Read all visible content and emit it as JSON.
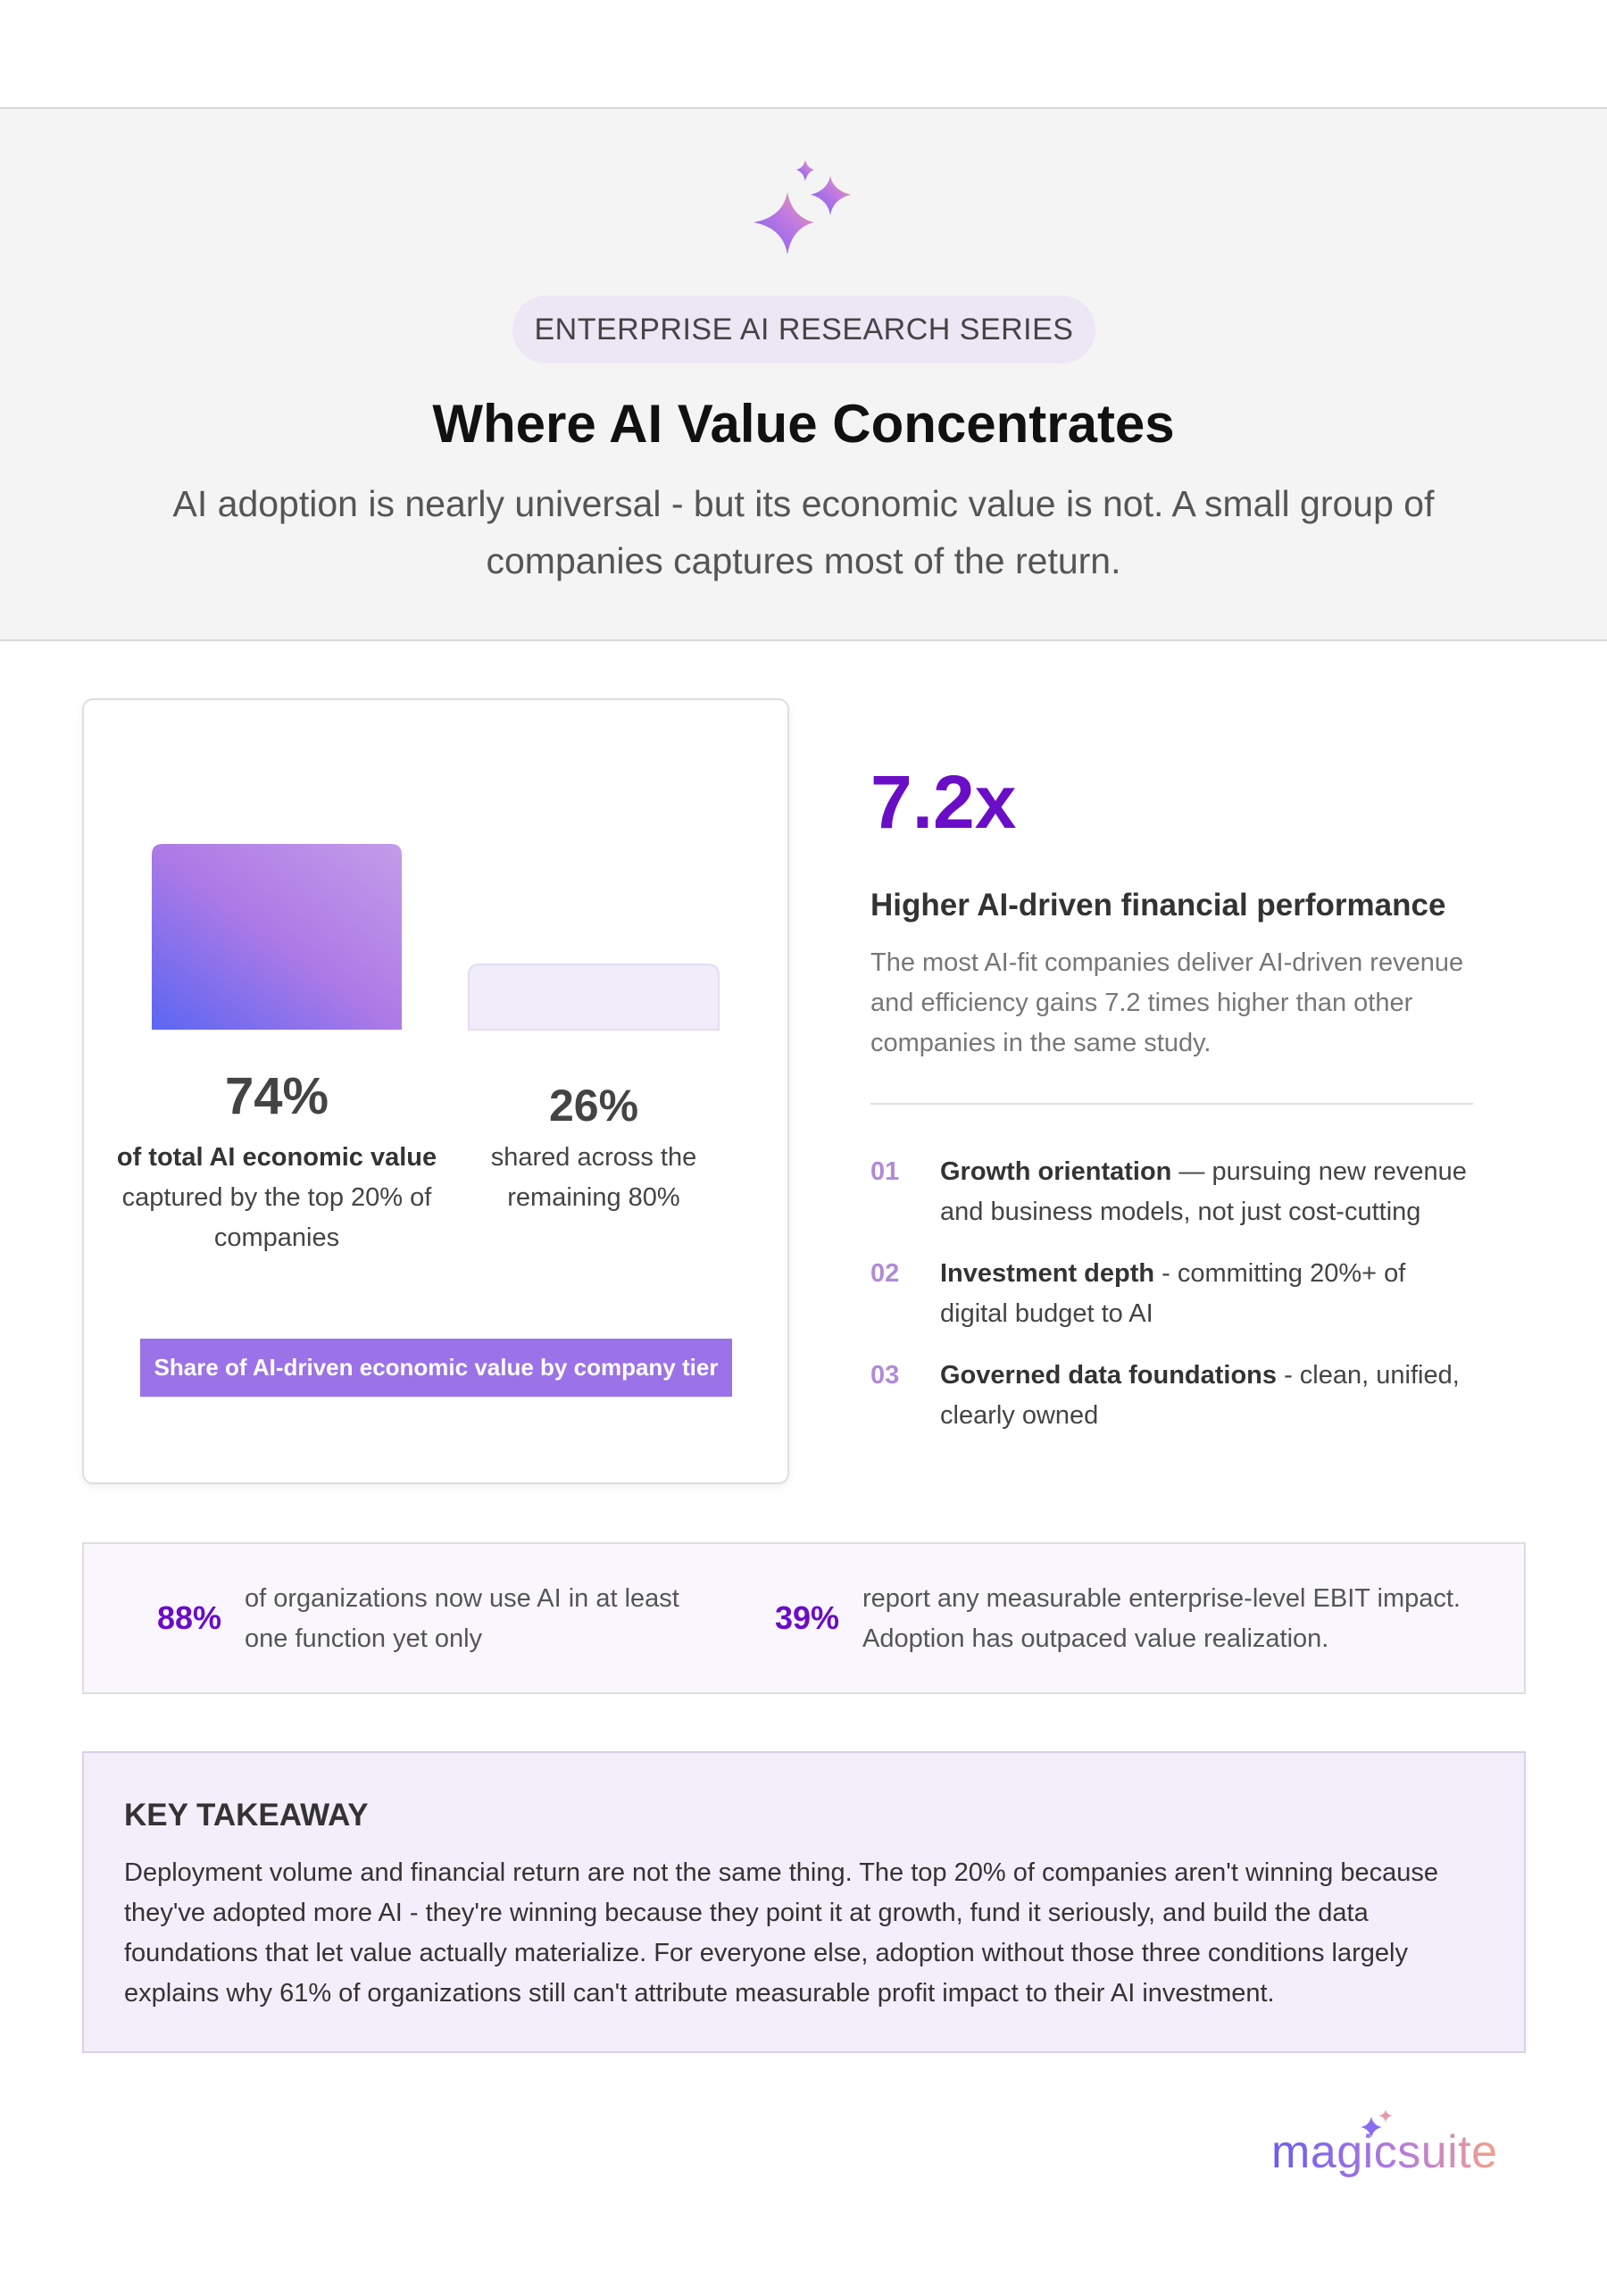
{
  "header": {
    "badge": "ENTERPRISE AI RESEARCH SERIES",
    "title": "Where AI Value Concentrates",
    "subtitle": "AI adoption is nearly universal - but its economic value is not. A small group of companies captures most of the return."
  },
  "chart_data": {
    "type": "bar",
    "title": "Share of AI-driven economic value by company tier",
    "values": [
      74,
      26
    ],
    "value_labels": [
      "74%",
      "26%"
    ],
    "categories": [
      {
        "bold": "of total AI economic value",
        "text": "captured by the top 20% of companies"
      },
      {
        "text": "shared across the remaining 80%"
      }
    ]
  },
  "highlight": {
    "stat": "7.2x",
    "heading": "Higher AI-driven financial performance",
    "description": "The most AI-fit companies deliver AI-driven revenue and efficiency gains 7.2 times higher than other companies in the same study.",
    "items": [
      {
        "number": "01",
        "bold": "Growth orientation",
        "text": " — pursuing new revenue and business models, not just cost-cutting"
      },
      {
        "number": "02",
        "bold": "Investment depth",
        "text": " - committing 20%+ of digital budget to AI"
      },
      {
        "number": "03",
        "bold": "Governed data foundations",
        "text": " - clean, unified, clearly owned"
      }
    ]
  },
  "stats": [
    {
      "value": "88%",
      "text": "of organizations now use AI in at least one function yet only"
    },
    {
      "value": "39%",
      "text": "report any measurable enterprise-level EBIT impact. Adoption has outpaced value realization."
    }
  ],
  "takeaway": {
    "title": "KEY TAKEAWAY",
    "body": "Deployment volume and financial return are not the same thing. The top 20% of companies aren't winning because they've adopted more AI - they're winning because they point it at growth, fund it seriously, and build the data foundations that let value actually materialize. For everyone else, adoption without those three conditions largely explains why 61% of organizations still can't attribute measurable profit impact to their AI investment."
  },
  "logo": "magicsuite"
}
